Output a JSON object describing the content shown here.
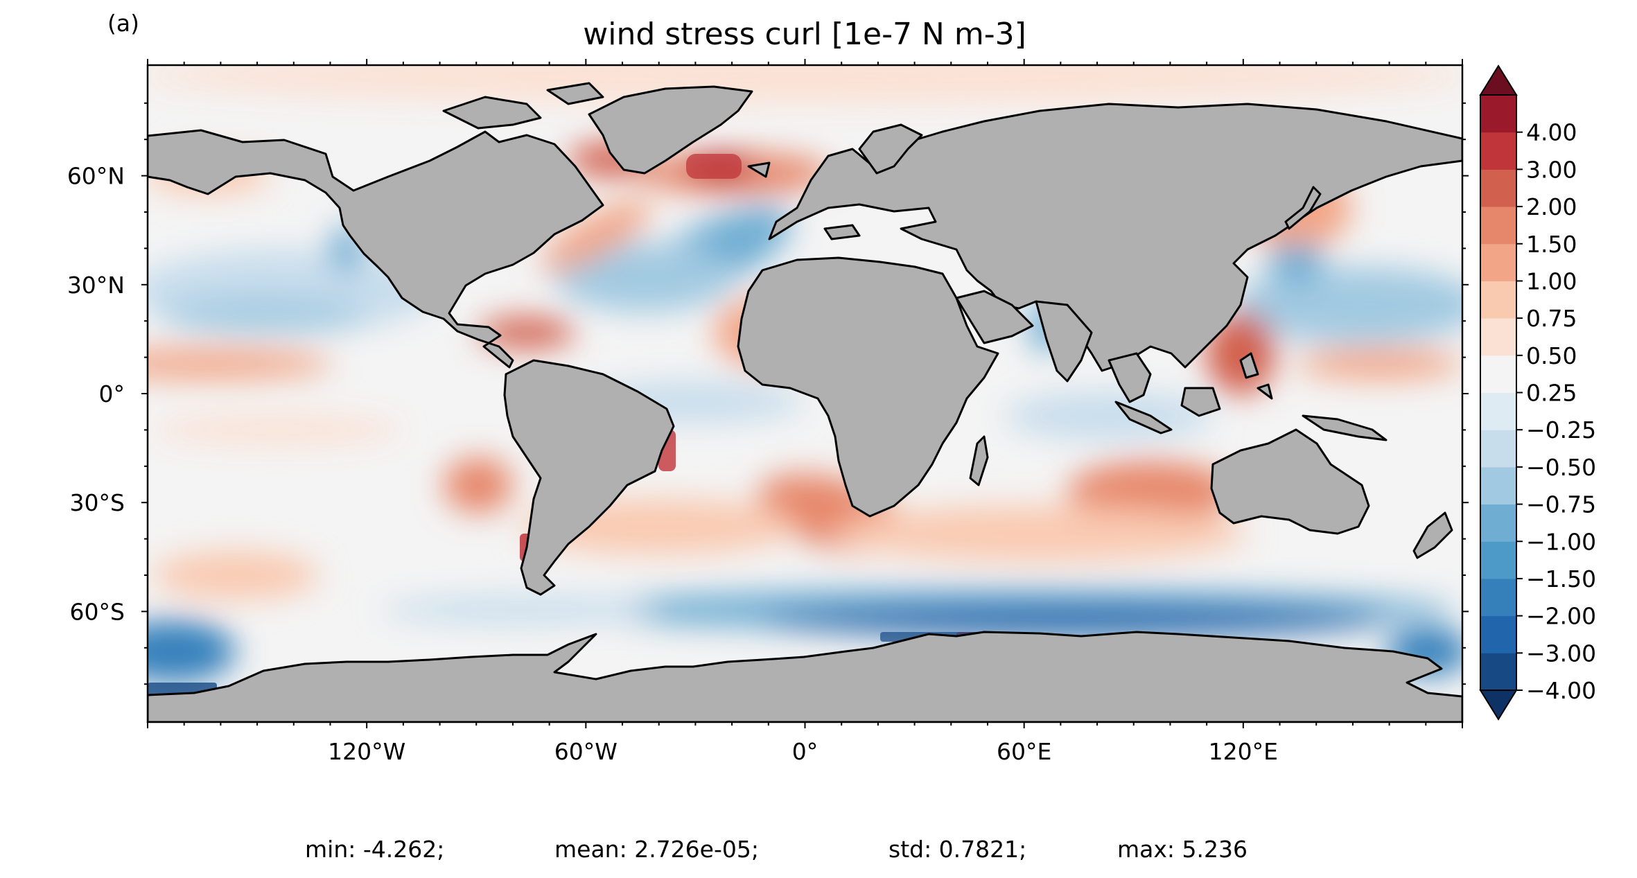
{
  "panel_label": "(a)",
  "title": "wind stress curl [1e-7 N m-3]",
  "map": {
    "projection": "PlateCarree",
    "x_ticks": [
      {
        "lon": -120,
        "label": "120°W"
      },
      {
        "lon": -60,
        "label": "60°W"
      },
      {
        "lon": 0,
        "label": "0°"
      },
      {
        "lon": 60,
        "label": "60°E"
      },
      {
        "lon": 120,
        "label": "120°E"
      }
    ],
    "y_ticks": [
      {
        "lat": 60,
        "label": "60°N"
      },
      {
        "lat": 30,
        "label": "30°N"
      },
      {
        "lat": 0,
        "label": "0°"
      },
      {
        "lat": -30,
        "label": "30°S"
      },
      {
        "lat": -60,
        "label": "60°S"
      }
    ],
    "land_color": "#b0b0b0",
    "coastline_color": "#000000",
    "colormap": "RdBu_r"
  },
  "colorbar": {
    "levels": [
      -4.0,
      -3.0,
      -2.0,
      -1.5,
      -1.0,
      -0.75,
      -0.5,
      -0.25,
      0.25,
      0.5,
      0.75,
      1.0,
      1.5,
      2.0,
      3.0,
      4.0
    ],
    "tick_labels": [
      "−4.00",
      "−3.00",
      "−2.00",
      "−1.50",
      "−1.00",
      "−0.75",
      "−0.50",
      "−0.25",
      "0.25",
      "0.50",
      "0.75",
      "1.00",
      "1.50",
      "2.00",
      "3.00",
      "4.00"
    ],
    "colors": [
      "#174a85",
      "#2166ac",
      "#3580bb",
      "#4d99c8",
      "#6fadd3",
      "#a1c9e1",
      "#c7ddec",
      "#dfebf3",
      "#f4f4f4",
      "#fbe1d4",
      "#f9c9b0",
      "#f2a687",
      "#e6876b",
      "#d2604e",
      "#c03539",
      "#9a1a2c"
    ],
    "extend_low_color": "#0e3266",
    "extend_high_color": "#6b0e20"
  },
  "stats": {
    "min": "min: -4.262;",
    "mean": "mean: 2.726e-05;",
    "std": "std: 0.7821;",
    "max": "max: 5.236"
  }
}
